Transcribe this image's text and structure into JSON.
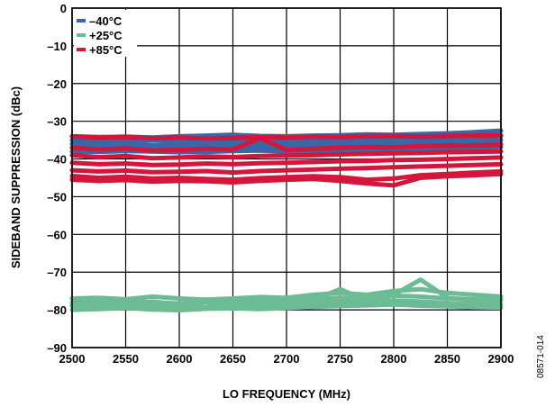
{
  "chart_data": {
    "type": "line",
    "xlabel": "LO FREQUENCY (MHz)",
    "ylabel": "SIDEBAND SUPPRESSION (dBc)",
    "xlim": [
      2500,
      2900
    ],
    "ylim": [
      -90,
      0
    ],
    "x_ticks": [
      "2500",
      "2550",
      "2600",
      "2650",
      "2700",
      "2750",
      "2800",
      "2850",
      "2900"
    ],
    "y_ticks": [
      "0",
      "–10",
      "–20",
      "–30",
      "–40",
      "–50",
      "–60",
      "–70",
      "–80",
      "–90"
    ],
    "grid": true,
    "legend_position": "top-left",
    "figure_id": "08571-014",
    "x": [
      2500,
      2525,
      2550,
      2575,
      2600,
      2625,
      2650,
      2675,
      2700,
      2725,
      2750,
      2775,
      2800,
      2825,
      2850,
      2875,
      2900
    ],
    "series": [
      {
        "name": "–40°C",
        "color": "#3a67a5",
        "curves": [
          [
            -34.0,
            -34.2,
            -34.1,
            -34.3,
            -34.0,
            -33.8,
            -33.6,
            -33.9,
            -34.0,
            -33.8,
            -33.7,
            -33.5,
            -33.6,
            -33.4,
            -33.2,
            -32.9,
            -32.5
          ],
          [
            -35.0,
            -35.1,
            -35.3,
            -35.0,
            -35.2,
            -35.4,
            -35.3,
            -35.5,
            -35.3,
            -35.1,
            -35.0,
            -34.8,
            -34.9,
            -34.6,
            -34.4,
            -34.2,
            -34.0
          ],
          [
            -36.0,
            -36.2,
            -36.0,
            -36.3,
            -36.1,
            -36.4,
            -36.2,
            -36.0,
            -36.2,
            -36.1,
            -35.9,
            -35.8,
            -35.7,
            -35.6,
            -35.4,
            -35.2,
            -35.0
          ],
          [
            -37.0,
            -37.1,
            -36.9,
            -37.2,
            -37.0,
            -37.3,
            -37.1,
            -36.9,
            -37.1,
            -37.0,
            -36.8,
            -36.7,
            -36.6,
            -36.5,
            -36.3,
            -36.2,
            -36.0
          ],
          [
            -38.0,
            -38.1,
            -37.9,
            -38.0,
            -38.2,
            -38.1,
            -37.9,
            -37.8,
            -38.0,
            -37.9,
            -37.7,
            -37.6,
            -37.5,
            -37.3,
            -37.2,
            -37.0,
            -36.8
          ]
        ]
      },
      {
        "name": "+25°C",
        "color": "#6dbb94",
        "curves": [
          [
            -77.0,
            -76.8,
            -77.2,
            -76.5,
            -77.0,
            -77.3,
            -77.0,
            -76.6,
            -76.8,
            -76.0,
            -75.5,
            -76.0,
            -75.0,
            -74.5,
            -75.5,
            -76.0,
            -76.5
          ],
          [
            -78.0,
            -78.2,
            -77.6,
            -78.0,
            -78.3,
            -77.8,
            -78.0,
            -77.5,
            -77.8,
            -77.2,
            -76.8,
            -77.0,
            -76.2,
            -76.5,
            -77.0,
            -77.2,
            -77.5
          ],
          [
            -79.0,
            -78.8,
            -79.2,
            -78.7,
            -79.0,
            -79.3,
            -78.8,
            -78.6,
            -78.9,
            -78.3,
            -78.0,
            -77.8,
            -77.5,
            -77.8,
            -78.2,
            -78.5,
            -78.6
          ],
          [
            -80.0,
            -79.8,
            -79.5,
            -79.9,
            -80.1,
            -79.7,
            -79.6,
            -79.8,
            -79.5,
            -79.2,
            -79.0,
            -78.8,
            -78.6,
            -78.9,
            -79.1,
            -79.3,
            -79.4
          ],
          [
            -78.5,
            -77.5,
            -78.8,
            -77.8,
            -78.6,
            -78.0,
            -79.0,
            -77.2,
            -78.4,
            -77.4,
            -74.5,
            -77.6,
            -76.0,
            -72.0,
            -76.8,
            -77.4,
            -77.0
          ]
        ]
      },
      {
        "name": "+85°C",
        "color": "#d4163c",
        "curves": [
          [
            -34.0,
            -34.3,
            -34.2,
            -34.5,
            -34.3,
            -34.6,
            -34.4,
            -34.2,
            -34.3,
            -34.1,
            -34.2,
            -34.0,
            -33.9,
            -34.1,
            -33.9,
            -33.8,
            -33.7
          ],
          [
            -37.0,
            -37.5,
            -37.2,
            -37.8,
            -37.6,
            -37.3,
            -37.5,
            -34.5,
            -37.6,
            -37.3,
            -37.0,
            -36.8,
            -36.9,
            -36.6,
            -36.5,
            -36.4,
            -36.2
          ],
          [
            -39.0,
            -39.5,
            -39.2,
            -39.8,
            -39.6,
            -39.3,
            -39.5,
            -39.2,
            -39.1,
            -39.0,
            -38.8,
            -38.6,
            -38.5,
            -38.4,
            -38.2,
            -38.1,
            -38.0
          ],
          [
            -41.0,
            -41.4,
            -41.2,
            -41.6,
            -41.5,
            -41.2,
            -41.4,
            -41.1,
            -41.0,
            -40.8,
            -40.6,
            -40.5,
            -40.3,
            -40.2,
            -40.0,
            -39.8,
            -39.6
          ],
          [
            -43.0,
            -43.3,
            -43.1,
            -43.5,
            -43.4,
            -43.2,
            -43.6,
            -43.2,
            -43.0,
            -42.8,
            -42.6,
            -42.4,
            -42.2,
            -42.0,
            -41.8,
            -41.6,
            -41.4
          ],
          [
            -44.5,
            -45.0,
            -44.7,
            -45.2,
            -45.0,
            -45.3,
            -45.5,
            -45.1,
            -44.8,
            -44.6,
            -44.8,
            -45.5,
            -45.2,
            -44.3,
            -44.0,
            -43.6,
            -43.3
          ],
          [
            -45.5,
            -45.8,
            -45.6,
            -46.0,
            -45.8,
            -45.9,
            -46.2,
            -45.8,
            -45.5,
            -45.3,
            -45.8,
            -46.5,
            -47.0,
            -45.0,
            -44.6,
            -44.3,
            -44.0
          ]
        ]
      }
    ]
  }
}
